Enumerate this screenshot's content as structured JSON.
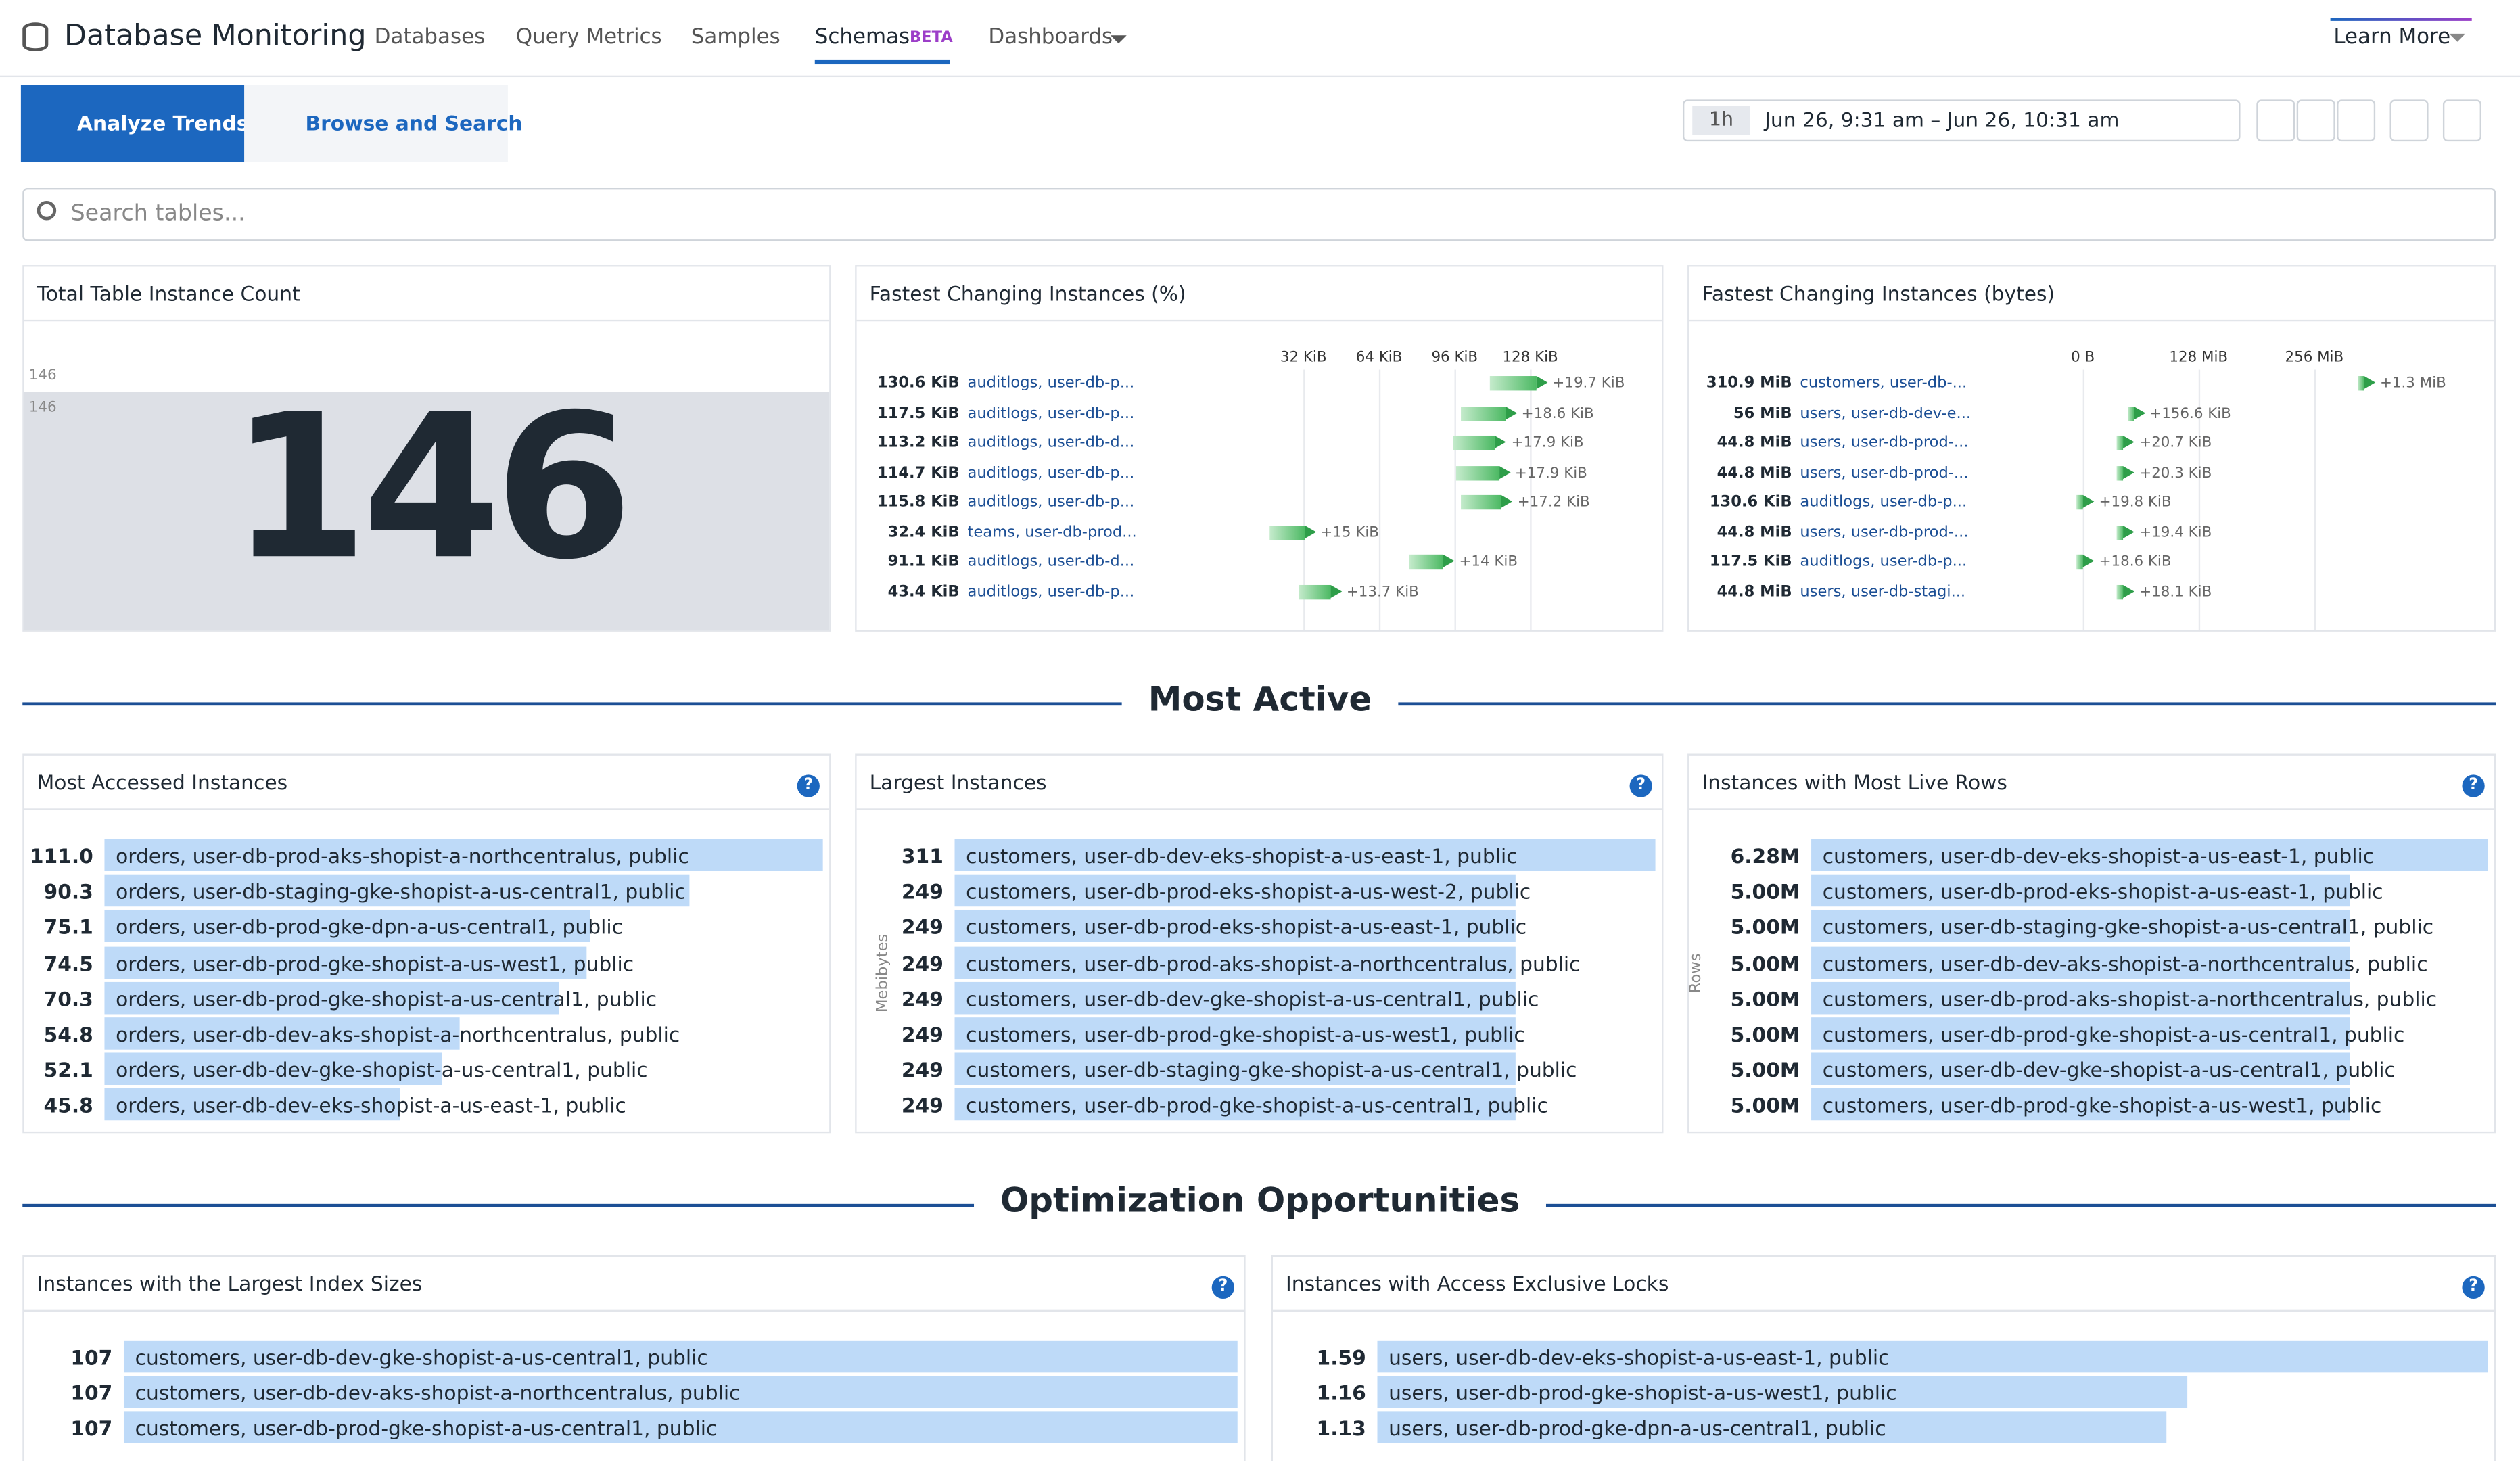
{
  "header": {
    "title": "Database Monitoring",
    "nav": [
      "Databases",
      "Query Metrics",
      "Samples",
      "Schemas",
      "Dashboards"
    ],
    "beta": "BETA",
    "learn_more": "Learn More"
  },
  "toolbar": {
    "tabs": [
      "Analyze Trends",
      "Browse and Search"
    ],
    "time_preset": "1h",
    "time_range": "Jun 26, 9:31 am – Jun 26, 10:31 am"
  },
  "search_placeholder": "Search tables...",
  "total": {
    "title": "Total Table Instance Count",
    "value": 146,
    "ref_labels": [
      146,
      146
    ]
  },
  "fastest_pct": {
    "title": "Fastest Changing Instances (%)",
    "ticks": [
      {
        "value": 32,
        "label": "32 KiB"
      },
      {
        "value": 64,
        "label": "64 KiB"
      },
      {
        "value": 96,
        "label": "96 KiB"
      },
      {
        "value": 128,
        "label": "128 KiB"
      }
    ],
    "rows": [
      {
        "size": 130.6,
        "size_label": "130.6 KiB",
        "name": "auditlogs, user-db-p...",
        "change": 19.7,
        "change_label": "+19.7 KiB"
      },
      {
        "size": 117.5,
        "size_label": "117.5 KiB",
        "name": "auditlogs, user-db-p...",
        "change": 18.6,
        "change_label": "+18.6 KiB"
      },
      {
        "size": 113.2,
        "size_label": "113.2 KiB",
        "name": "auditlogs, user-db-d...",
        "change": 17.9,
        "change_label": "+17.9 KiB"
      },
      {
        "size": 114.7,
        "size_label": "114.7 KiB",
        "name": "auditlogs, user-db-p...",
        "change": 17.9,
        "change_label": "+17.9 KiB"
      },
      {
        "size": 115.8,
        "size_label": "115.8 KiB",
        "name": "auditlogs, user-db-p...",
        "change": 17.2,
        "change_label": "+17.2 KiB"
      },
      {
        "size": 32.4,
        "size_label": "32.4 KiB",
        "name": "teams, user-db-prod...",
        "change": 15,
        "change_label": "+15 KiB"
      },
      {
        "size": 91.1,
        "size_label": "91.1 KiB",
        "name": "auditlogs, user-db-d...",
        "change": 14,
        "change_label": "+14 KiB"
      },
      {
        "size": 43.4,
        "size_label": "43.4 KiB",
        "name": "auditlogs, user-db-p...",
        "change": 13.7,
        "change_label": "+13.7 KiB"
      }
    ]
  },
  "fastest_bytes": {
    "title": "Fastest Changing Instances (bytes)",
    "ticks": [
      {
        "value": 0,
        "label": "0 B"
      },
      {
        "value": 128,
        "label": "128 MiB"
      },
      {
        "value": 256,
        "label": "256 MiB"
      }
    ],
    "rows": [
      {
        "size": 310.9,
        "size_label": "310.9 MiB",
        "name": "customers, user-db-...",
        "change": 1.3,
        "change_label": "+1.3 MiB"
      },
      {
        "size": 56,
        "size_label": "56 MiB",
        "name": "users, user-db-dev-e...",
        "change": 0.153,
        "change_label": "+156.6 KiB"
      },
      {
        "size": 44.8,
        "size_label": "44.8 MiB",
        "name": "users, user-db-prod-...",
        "change": 0.02,
        "change_label": "+20.7 KiB"
      },
      {
        "size": 44.8,
        "size_label": "44.8 MiB",
        "name": "users, user-db-prod-...",
        "change": 0.02,
        "change_label": "+20.3 KiB"
      },
      {
        "size": 0.128,
        "size_label": "130.6 KiB",
        "name": "auditlogs, user-db-p...",
        "change": 0.019,
        "change_label": "+19.8 KiB"
      },
      {
        "size": 44.8,
        "size_label": "44.8 MiB",
        "name": "users, user-db-prod-...",
        "change": 0.019,
        "change_label": "+19.4 KiB"
      },
      {
        "size": 0.115,
        "size_label": "117.5 KiB",
        "name": "auditlogs, user-db-p...",
        "change": 0.018,
        "change_label": "+18.6 KiB"
      },
      {
        "size": 44.8,
        "size_label": "44.8 MiB",
        "name": "users, user-db-stagi...",
        "change": 0.018,
        "change_label": "+18.1 KiB"
      }
    ]
  },
  "sections": [
    "Most Active",
    "Optimization Opportunities"
  ],
  "lists": [
    {
      "title": "Most Accessed Instances",
      "rows": [
        {
          "value": 111.0,
          "label": "111.0",
          "name": "orders, user-db-prod-aks-shopist-a-northcentralus, public"
        },
        {
          "value": 90.3,
          "label": "90.3",
          "name": "orders, user-db-staging-gke-shopist-a-us-central1, public"
        },
        {
          "value": 75.1,
          "label": "75.1",
          "name": "orders, user-db-prod-gke-dpn-a-us-central1, public"
        },
        {
          "value": 74.5,
          "label": "74.5",
          "name": "orders, user-db-prod-gke-shopist-a-us-west1, public"
        },
        {
          "value": 70.3,
          "label": "70.3",
          "name": "orders, user-db-prod-gke-shopist-a-us-central1, public"
        },
        {
          "value": 54.8,
          "label": "54.8",
          "name": "orders, user-db-dev-aks-shopist-a-northcentralus, public"
        },
        {
          "value": 52.1,
          "label": "52.1",
          "name": "orders, user-db-dev-gke-shopist-a-us-central1, public"
        },
        {
          "value": 45.8,
          "label": "45.8",
          "name": "orders, user-db-dev-eks-shopist-a-us-east-1, public"
        }
      ]
    },
    {
      "title": "Largest Instances",
      "axis_label": "Mebibytes",
      "rows": [
        {
          "value": 311,
          "name": "customers, user-db-dev-eks-shopist-a-us-east-1, public"
        },
        {
          "value": 249,
          "name": "customers, user-db-prod-eks-shopist-a-us-west-2, public"
        },
        {
          "value": 249,
          "name": "customers, user-db-prod-eks-shopist-a-us-east-1, public"
        },
        {
          "value": 249,
          "name": "customers, user-db-prod-aks-shopist-a-northcentralus, public"
        },
        {
          "value": 249,
          "name": "customers, user-db-dev-gke-shopist-a-us-central1, public"
        },
        {
          "value": 249,
          "name": "customers, user-db-prod-gke-shopist-a-us-west1, public"
        },
        {
          "value": 249,
          "name": "customers, user-db-staging-gke-shopist-a-us-central1, public"
        },
        {
          "value": 249,
          "name": "customers, user-db-prod-gke-shopist-a-us-central1, public"
        }
      ]
    },
    {
      "title": "Instances with Most Live Rows",
      "axis_label": "Rows",
      "rows": [
        {
          "value": 6280000,
          "label": "6.28M",
          "name": "customers, user-db-dev-eks-shopist-a-us-east-1, public"
        },
        {
          "value": 5000000,
          "label": "5.00M",
          "name": "customers, user-db-prod-eks-shopist-a-us-east-1, public"
        },
        {
          "value": 5000000,
          "label": "5.00M",
          "name": "customers, user-db-staging-gke-shopist-a-us-central1, public"
        },
        {
          "value": 5000000,
          "label": "5.00M",
          "name": "customers, user-db-dev-aks-shopist-a-northcentralus, public"
        },
        {
          "value": 5000000,
          "label": "5.00M",
          "name": "customers, user-db-prod-aks-shopist-a-northcentralus, public"
        },
        {
          "value": 5000000,
          "label": "5.00M",
          "name": "customers, user-db-prod-gke-shopist-a-us-central1, public"
        },
        {
          "value": 5000000,
          "label": "5.00M",
          "name": "customers, user-db-dev-gke-shopist-a-us-central1, public"
        },
        {
          "value": 5000000,
          "label": "5.00M",
          "name": "customers, user-db-prod-gke-shopist-a-us-west1, public"
        }
      ]
    },
    {
      "title": "Instances with the Largest Index Sizes",
      "rows": [
        {
          "value": 107,
          "name": "customers, user-db-dev-gke-shopist-a-us-central1, public"
        },
        {
          "value": 107,
          "name": "customers, user-db-dev-aks-shopist-a-northcentralus, public"
        },
        {
          "value": 107,
          "name": "customers, user-db-prod-gke-shopist-a-us-central1, public"
        }
      ]
    },
    {
      "title": "Instances with Access Exclusive Locks",
      "rows": [
        {
          "value": 1.59,
          "name": "users, user-db-dev-eks-shopist-a-us-east-1, public"
        },
        {
          "value": 1.16,
          "name": "users, user-db-prod-gke-shopist-a-us-west1, public"
        },
        {
          "value": 1.13,
          "name": "users, user-db-prod-gke-dpn-a-us-central1, public"
        }
      ]
    }
  ]
}
